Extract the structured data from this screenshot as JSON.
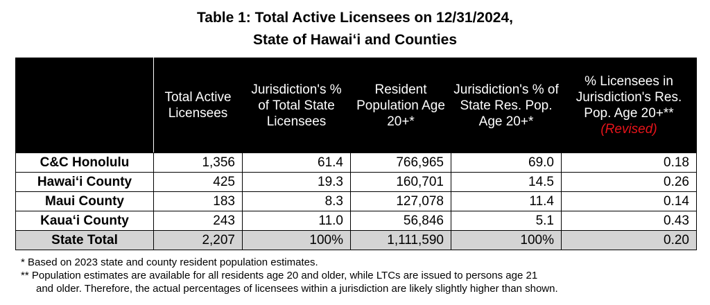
{
  "title_line1": "Table 1: Total Active Licensees on 12/31/2024,",
  "title_line2": "State of Hawai‘i and Counties",
  "table": {
    "headers": [
      "",
      "Total Active Licensees",
      "Jurisdiction's % of Total State Licensees",
      "Resident Population Age 20+*",
      "Jurisdiction's % of State Res. Pop. Age 20+*",
      "% Licensees in Jurisdiction's Res. Pop. Age 20+**"
    ],
    "revised_label": "(Revised)",
    "revised_color": "#e8141b",
    "rows": [
      {
        "name": "C&C Honolulu",
        "licensees": "1,356",
        "pct_licensees": "61.4",
        "population": "766,965",
        "pct_population": "69.0",
        "pct_in_pop": "0.18"
      },
      {
        "name": "Hawai‘i County",
        "licensees": "425",
        "pct_licensees": "19.3",
        "population": "160,701",
        "pct_population": "14.5",
        "pct_in_pop": "0.26"
      },
      {
        "name": "Maui County",
        "licensees": "183",
        "pct_licensees": "8.3",
        "population": "127,078",
        "pct_population": "11.4",
        "pct_in_pop": "0.14"
      },
      {
        "name": "Kaua‘i County",
        "licensees": "243",
        "pct_licensees": "11.0",
        "population": "56,846",
        "pct_population": "5.1",
        "pct_in_pop": "0.43"
      }
    ],
    "total": {
      "name": "State Total",
      "licensees": "2,207",
      "pct_licensees": "100%",
      "population": "1,111,590",
      "pct_population": "100%",
      "pct_in_pop": "0.20"
    },
    "total_row_color": "#d4d4d4"
  },
  "footnotes": {
    "note1": "*  Based on 2023 state and county resident population estimates.",
    "note2_line1": "** Population estimates are available for all residents age 20 and older, while LTCs are issued to persons age 21",
    "note2_line2": "and older. Therefore, the actual percentages of licensees within a jurisdiction are likely slightly higher than shown."
  }
}
